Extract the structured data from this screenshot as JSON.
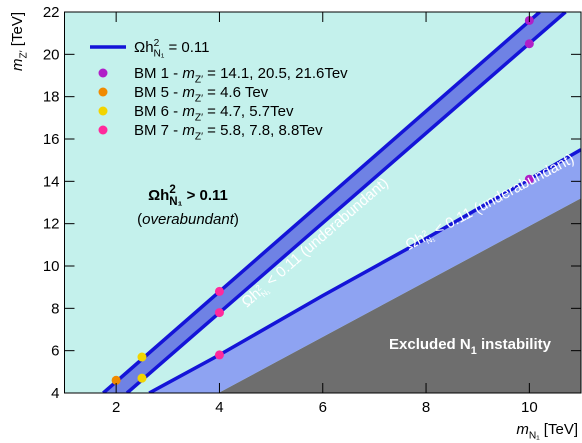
{
  "chart_data": {
    "type": "scatter",
    "xlabel": [
      {
        "text": "m",
        "style": "italic"
      },
      {
        "text": "N₁",
        "style": "sub"
      },
      {
        "text": " [TeV]"
      }
    ],
    "ylabel": [
      {
        "text": "m",
        "style": "italic"
      },
      {
        "text": "Z′",
        "style": "sub"
      },
      {
        "text": " [TeV]"
      }
    ],
    "xlim": [
      1,
      11
    ],
    "ylim": [
      4,
      22
    ],
    "xticks": [
      2,
      4,
      6,
      8,
      10
    ],
    "yticks": [
      4,
      6,
      8,
      10,
      12,
      14,
      16,
      18,
      20,
      22
    ],
    "background": "#c4f1ec",
    "line_color": "#1414d8",
    "line_label": [
      {
        "text": "Ωh"
      },
      {
        "text": "2",
        "style": "sup"
      },
      {
        "text": "N₁",
        "style": "sub"
      },
      {
        "text": " = 0.11"
      }
    ],
    "bands": [
      {
        "color": "#6f82e4",
        "upper": {
          "x": [
            1.75,
            10.2
          ],
          "values": [
            4,
            22
          ]
        },
        "lower": {
          "x": [
            2.21,
            10.7
          ],
          "values": [
            4,
            22
          ]
        }
      },
      {
        "color": "#8ea3f2",
        "upper": {
          "x": [
            2.64,
            4,
            6,
            8,
            10,
            11
          ],
          "values": [
            4,
            5.8,
            8.6,
            11.3,
            14.1,
            15.5
          ]
        },
        "lower": {
          "x": [
            3.98,
            11
          ],
          "values": [
            4,
            13.2
          ]
        }
      }
    ],
    "excluded": {
      "color": "#6e6e6e",
      "x": [
        3.98,
        11,
        11
      ],
      "values": [
        4,
        13.2,
        4
      ]
    },
    "series": [
      {
        "label": [
          {
            "text": "BM 1 - "
          },
          {
            "text": "m",
            "style": "italic"
          },
          {
            "text": "Z′",
            "style": "sub"
          },
          {
            "text": " = 14.1, 20.5, 21.6Tev"
          }
        ],
        "color": "#b01fc8",
        "x": [
          10,
          10,
          10
        ],
        "values": [
          14.1,
          20.5,
          21.6
        ]
      },
      {
        "label": [
          {
            "text": "BM 5  - "
          },
          {
            "text": "m",
            "style": "italic"
          },
          {
            "text": "Z′",
            "style": "sub"
          },
          {
            "text": " = 4.6 Tev"
          }
        ],
        "color": "#f08a00",
        "x": [
          2
        ],
        "values": [
          4.6
        ]
      },
      {
        "label": [
          {
            "text": "BM 6  - "
          },
          {
            "text": "m",
            "style": "italic"
          },
          {
            "text": "Z′",
            "style": "sub"
          },
          {
            "text": " = 4.7, 5.7Tev"
          }
        ],
        "color": "#f2d400",
        "x": [
          2.5,
          2.5
        ],
        "values": [
          4.7,
          5.7
        ]
      },
      {
        "label": [
          {
            "text": "BM 7 - "
          },
          {
            "text": "m",
            "style": "italic"
          },
          {
            "text": "Z′",
            "style": "sub"
          },
          {
            "text": " = 5.8,  7.8, 8.8Tev"
          }
        ],
        "color": "#ff2a9c",
        "x": [
          4,
          4,
          4
        ],
        "values": [
          5.8,
          7.8,
          8.8
        ]
      }
    ],
    "annotations": [
      [
        {
          "text": "Ωh"
        },
        {
          "text": "2",
          "style": "sup"
        },
        {
          "text": "N₁",
          "style": "sub"
        },
        {
          "text": " > 0.11"
        }
      ],
      [
        {
          "text": "("
        },
        {
          "text": "overabundant",
          "style": "italic"
        },
        {
          "text": ")"
        }
      ],
      [
        {
          "text": "Ωh"
        },
        {
          "text": "2",
          "style": "sup"
        },
        {
          "text": "N₁",
          "style": "sub"
        },
        {
          "text": " < 0.11 (underabundant)"
        }
      ],
      [
        {
          "text": "Ωh"
        },
        {
          "text": "2",
          "style": "sup"
        },
        {
          "text": "N₁",
          "style": "sub"
        },
        {
          "text": " < 0.11 (underabundant)"
        }
      ],
      [
        {
          "text": "Excluded N"
        },
        {
          "text": "1",
          "style": "sub"
        },
        {
          "text": " instability"
        }
      ]
    ]
  }
}
